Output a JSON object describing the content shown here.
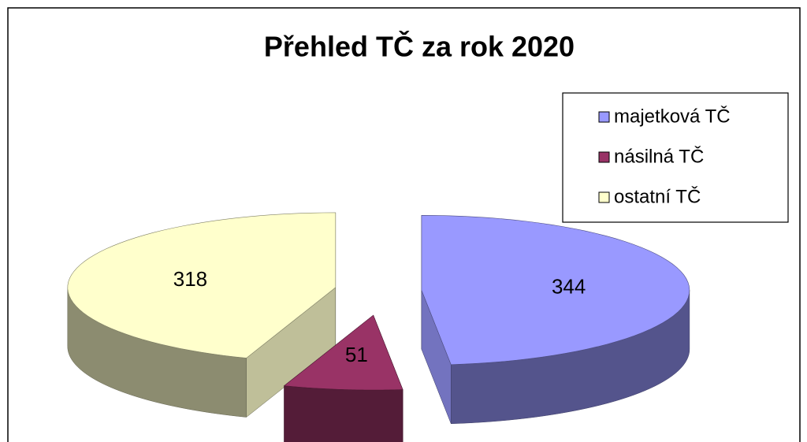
{
  "chart_data": {
    "type": "pie",
    "title": "Přehled TČ za rok 2020",
    "categories": [
      "majetková TČ",
      "násilná TČ",
      "ostatní TČ"
    ],
    "values": [
      344,
      51,
      318
    ],
    "colors": [
      "#9999ff",
      "#993366",
      "#ffffcc"
    ],
    "legend": "right"
  }
}
